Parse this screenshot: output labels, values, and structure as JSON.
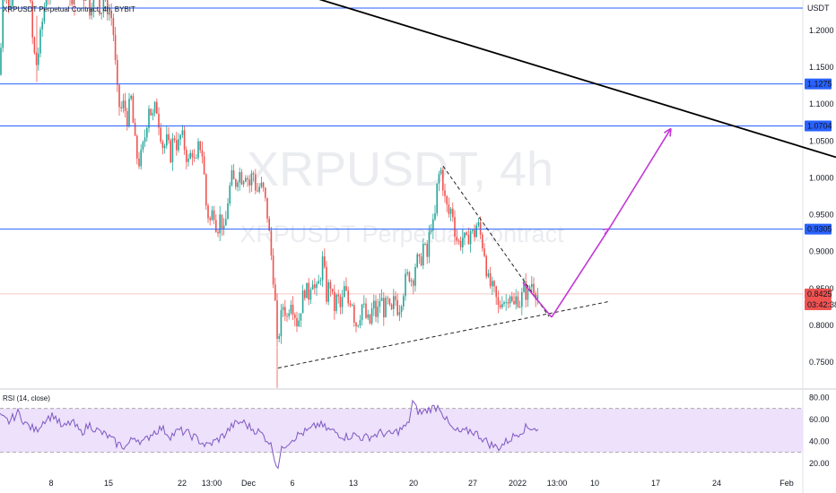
{
  "header": {
    "symbol_line": "XRPUSDT Perpetual Contract, 4h, BYBIT"
  },
  "watermark": {
    "symbol": "XRPUSDT, 4h",
    "description": "XRPUSDT Perpetual Contract"
  },
  "rsi_panel": {
    "title": "RSI (14, close)"
  },
  "colors": {
    "up": "#26a69a",
    "down": "#ef5350",
    "level_line": "#2962ff",
    "trend_line": "#000000",
    "projection": "#c239d6",
    "rsi_line": "#7e57c2",
    "rsi_band": "#ede1fb",
    "last_price": "#ef5350"
  },
  "chart_data": [
    {
      "type": "candlestick",
      "title": "XRPUSDT Perpetual Contract, 4h, BYBIT",
      "ylim": [
        0.72,
        1.34
      ],
      "y_ticks": [
        "1.2000",
        "1.1500",
        "1.1000",
        "1.0500",
        "1.0000",
        "0.9500",
        "0.9000",
        "0.8500",
        "0.8000",
        "0.7500"
      ],
      "x_ticks": [
        "8",
        "15",
        "22",
        "13:00",
        "Dec",
        "6",
        "13",
        "20",
        "27",
        "2022",
        "13:00",
        "10",
        "17",
        "24",
        "Feb"
      ],
      "price_levels": [
        {
          "label": "1.1275",
          "value": 1.1275
        },
        {
          "label": "1.0704",
          "value": 1.0704
        },
        {
          "label": "0.9305",
          "value": 0.9305
        }
      ],
      "top_level_label": "USDT",
      "last_price": {
        "label": "0.8425",
        "value": 0.8425,
        "countdown": "03:42:38"
      },
      "close_path": [
        [
          0,
          1.14
        ],
        [
          3,
          1.25
        ],
        [
          6,
          1.28
        ],
        [
          9,
          1.22
        ],
        [
          12,
          1.24
        ],
        [
          15,
          1.27
        ],
        [
          18,
          1.31
        ],
        [
          21,
          1.28
        ],
        [
          24,
          1.32
        ],
        [
          27,
          1.3
        ],
        [
          30,
          1.27
        ],
        [
          33,
          1.25
        ],
        [
          36,
          1.19
        ],
        [
          40,
          1.15
        ],
        [
          44,
          1.18
        ],
        [
          48,
          1.22
        ],
        [
          52,
          1.26
        ],
        [
          56,
          1.24
        ],
        [
          60,
          1.29
        ],
        [
          64,
          1.31
        ],
        [
          68,
          1.28
        ],
        [
          72,
          1.3
        ],
        [
          76,
          1.27
        ],
        [
          80,
          1.23
        ],
        [
          84,
          1.26
        ],
        [
          88,
          1.29
        ],
        [
          92,
          1.24
        ],
        [
          96,
          1.26
        ],
        [
          100,
          1.23
        ],
        [
          104,
          1.25
        ],
        [
          108,
          1.27
        ],
        [
          112,
          1.22
        ],
        [
          116,
          1.25
        ],
        [
          120,
          1.23
        ],
        [
          124,
          1.22
        ],
        [
          127,
          1.19
        ],
        [
          130,
          1.12
        ],
        [
          134,
          1.09
        ],
        [
          138,
          1.1
        ],
        [
          142,
          1.08
        ],
        [
          146,
          1.11
        ],
        [
          150,
          1.05
        ],
        [
          154,
          1.02
        ],
        [
          158,
          1.03
        ],
        [
          162,
          1.06
        ],
        [
          166,
          1.1
        ],
        [
          170,
          1.08
        ],
        [
          174,
          1.1
        ],
        [
          178,
          1.07
        ],
        [
          182,
          1.04
        ],
        [
          186,
          1.05
        ],
        [
          190,
          1.03
        ],
        [
          194,
          1.06
        ],
        [
          198,
          1.04
        ],
        [
          202,
          1.06
        ],
        [
          206,
          1.04
        ],
        [
          210,
          1.02
        ],
        [
          214,
          1.04
        ],
        [
          218,
          1.01
        ],
        [
          222,
          1.05
        ],
        [
          226,
          1.03
        ],
        [
          230,
          0.96
        ],
        [
          234,
          0.94
        ],
        [
          238,
          0.96
        ],
        [
          242,
          0.93
        ],
        [
          246,
          0.95
        ],
        [
          250,
          0.92
        ],
        [
          254,
          0.97
        ],
        [
          258,
          1.0
        ],
        [
          262,
          0.99
        ],
        [
          266,
          1.01
        ],
        [
          270,
          1.0
        ],
        [
          274,
          1.01
        ],
        [
          278,
          0.99
        ],
        [
          282,
          1.01
        ],
        [
          286,
          0.98
        ],
        [
          290,
          0.99
        ],
        [
          294,
          0.98
        ],
        [
          298,
          0.95
        ],
        [
          302,
          0.9
        ],
        [
          306,
          0.85
        ],
        [
          309,
          0.77
        ],
        [
          312,
          0.8
        ],
        [
          316,
          0.83
        ],
        [
          320,
          0.81
        ],
        [
          324,
          0.84
        ],
        [
          328,
          0.82
        ],
        [
          332,
          0.8
        ],
        [
          336,
          0.83
        ],
        [
          340,
          0.85
        ],
        [
          344,
          0.84
        ],
        [
          348,
          0.87
        ],
        [
          352,
          0.84
        ],
        [
          356,
          0.86
        ],
        [
          360,
          0.89
        ],
        [
          364,
          0.84
        ],
        [
          368,
          0.86
        ],
        [
          372,
          0.82
        ],
        [
          376,
          0.84
        ],
        [
          380,
          0.82
        ],
        [
          384,
          0.85
        ],
        [
          388,
          0.83
        ],
        [
          392,
          0.84
        ],
        [
          396,
          0.8
        ],
        [
          400,
          0.81
        ],
        [
          404,
          0.83
        ],
        [
          408,
          0.81
        ],
        [
          412,
          0.8
        ],
        [
          416,
          0.83
        ],
        [
          420,
          0.81
        ],
        [
          424,
          0.84
        ],
        [
          428,
          0.82
        ],
        [
          432,
          0.83
        ],
        [
          436,
          0.81
        ],
        [
          440,
          0.84
        ],
        [
          444,
          0.82
        ],
        [
          448,
          0.84
        ],
        [
          452,
          0.86
        ],
        [
          456,
          0.87
        ],
        [
          460,
          0.86
        ],
        [
          464,
          0.89
        ],
        [
          468,
          0.88
        ],
        [
          472,
          0.91
        ],
        [
          476,
          0.89
        ],
        [
          480,
          0.94
        ],
        [
          484,
          0.93
        ],
        [
          488,
          1.0
        ],
        [
          492,
          1.01
        ],
        [
          496,
          0.97
        ],
        [
          500,
          0.95
        ],
        [
          504,
          0.96
        ],
        [
          508,
          0.92
        ],
        [
          512,
          0.91
        ],
        [
          516,
          0.92
        ],
        [
          520,
          0.91
        ],
        [
          524,
          0.93
        ],
        [
          528,
          0.92
        ],
        [
          532,
          0.94
        ],
        [
          536,
          0.92
        ],
        [
          540,
          0.9
        ],
        [
          544,
          0.86
        ],
        [
          548,
          0.85
        ],
        [
          552,
          0.84
        ],
        [
          556,
          0.82
        ],
        [
          560,
          0.84
        ],
        [
          564,
          0.83
        ],
        [
          568,
          0.85
        ],
        [
          572,
          0.82
        ],
        [
          576,
          0.84
        ],
        [
          580,
          0.83
        ],
        [
          584,
          0.85
        ],
        [
          588,
          0.84
        ],
        [
          592,
          0.86
        ],
        [
          596,
          0.85
        ],
        [
          600,
          0.84
        ]
      ],
      "trendlines": [
        {
          "name": "long-downtrend",
          "from": [
            80,
            1.345
          ],
          "to": [
            932,
            1.028
          ],
          "style": "solid"
        },
        {
          "name": "ascending-support",
          "from": [
            310,
            0.742
          ],
          "to": [
            680,
            0.8325
          ],
          "style": "dashed"
        },
        {
          "name": "descending-resistance",
          "from": [
            494,
            1.016
          ],
          "to": [
            612,
            0.812
          ],
          "style": "dashed"
        }
      ],
      "projection": [
        [
          583,
          0.858
        ],
        [
          615,
          0.811
        ],
        [
          679,
          0.931
        ],
        [
          748,
          1.067
        ]
      ]
    },
    {
      "type": "line",
      "title": "RSI (14, close)",
      "ylim": [
        10,
        86
      ],
      "y_ticks": [
        "80.00",
        "60.00",
        "40.00",
        "20.00"
      ],
      "band": [
        30,
        70
      ],
      "values_path": [
        [
          0,
          62
        ],
        [
          10,
          58
        ],
        [
          20,
          66
        ],
        [
          30,
          55
        ],
        [
          40,
          50
        ],
        [
          50,
          60
        ],
        [
          60,
          64
        ],
        [
          70,
          52
        ],
        [
          80,
          58
        ],
        [
          90,
          48
        ],
        [
          100,
          55
        ],
        [
          110,
          49
        ],
        [
          120,
          45
        ],
        [
          130,
          38
        ],
        [
          140,
          35
        ],
        [
          150,
          44
        ],
        [
          160,
          39
        ],
        [
          170,
          48
        ],
        [
          180,
          52
        ],
        [
          190,
          45
        ],
        [
          200,
          50
        ],
        [
          210,
          47
        ],
        [
          220,
          42
        ],
        [
          230,
          36
        ],
        [
          240,
          40
        ],
        [
          250,
          46
        ],
        [
          260,
          55
        ],
        [
          270,
          58
        ],
        [
          280,
          52
        ],
        [
          290,
          48
        ],
        [
          300,
          40
        ],
        [
          305,
          30
        ],
        [
          309,
          15
        ],
        [
          315,
          35
        ],
        [
          325,
          42
        ],
        [
          335,
          47
        ],
        [
          345,
          50
        ],
        [
          355,
          56
        ],
        [
          365,
          51
        ],
        [
          375,
          48
        ],
        [
          385,
          44
        ],
        [
          395,
          46
        ],
        [
          405,
          43
        ],
        [
          415,
          45
        ],
        [
          425,
          48
        ],
        [
          435,
          46
        ],
        [
          445,
          50
        ],
        [
          455,
          55
        ],
        [
          460,
          76
        ],
        [
          465,
          68
        ],
        [
          470,
          66
        ],
        [
          480,
          70
        ],
        [
          490,
          72
        ],
        [
          497,
          60
        ],
        [
          505,
          50
        ],
        [
          515,
          48
        ],
        [
          525,
          50
        ],
        [
          535,
          45
        ],
        [
          545,
          38
        ],
        [
          555,
          34
        ],
        [
          565,
          40
        ],
        [
          575,
          46
        ],
        [
          585,
          52
        ],
        [
          595,
          53
        ],
        [
          600,
          50
        ]
      ]
    }
  ]
}
